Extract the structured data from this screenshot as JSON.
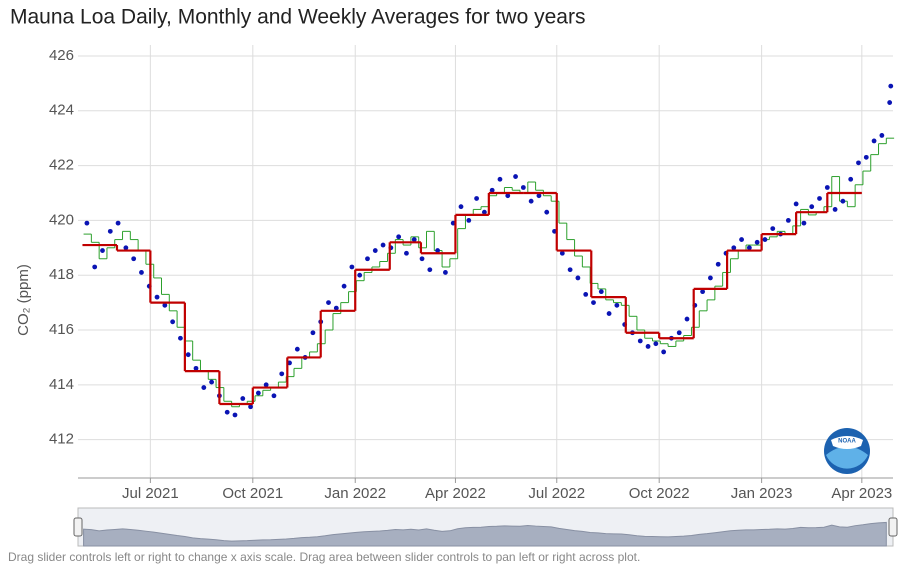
{
  "chart_data": {
    "type": "co2-steps",
    "title": "Mauna Loa Daily, Monthly and Weekly Averages for two years",
    "y_label": "CO₂ (ppm)",
    "footer": "Drag slider controls left or right to change x axis scale. Drag area between slider controls to pan left or right across plot.",
    "logo_text": "NOAA",
    "xlim": [
      "2021-04-27",
      "2023-04-29"
    ],
    "xticks": [
      {
        "value": "2021-07-01",
        "label": "Jul 2021"
      },
      {
        "value": "2021-10-01",
        "label": "Oct 2021"
      },
      {
        "value": "2022-01-01",
        "label": "Jan 2022"
      },
      {
        "value": "2022-04-01",
        "label": "Apr 2022"
      },
      {
        "value": "2022-07-01",
        "label": "Jul 2022"
      },
      {
        "value": "2022-10-01",
        "label": "Oct 2022"
      },
      {
        "value": "2023-01-01",
        "label": "Jan 2023"
      },
      {
        "value": "2023-04-01",
        "label": "Apr 2023"
      }
    ],
    "ylim": [
      410.6,
      426.4
    ],
    "yticks": [
      412,
      414,
      416,
      418,
      420,
      422,
      424,
      426
    ],
    "grid": true,
    "daily": {
      "color": "#0a14b4",
      "x": [
        "2021-05-05",
        "2021-05-12",
        "2021-05-19",
        "2021-05-26",
        "2021-06-02",
        "2021-06-09",
        "2021-06-16",
        "2021-06-23",
        "2021-06-30",
        "2021-07-07",
        "2021-07-14",
        "2021-07-21",
        "2021-07-28",
        "2021-08-04",
        "2021-08-11",
        "2021-08-18",
        "2021-08-25",
        "2021-09-01",
        "2021-09-08",
        "2021-09-15",
        "2021-09-22",
        "2021-09-29",
        "2021-10-06",
        "2021-10-13",
        "2021-10-20",
        "2021-10-27",
        "2021-11-03",
        "2021-11-10",
        "2021-11-17",
        "2021-11-24",
        "2021-12-01",
        "2021-12-08",
        "2021-12-15",
        "2021-12-22",
        "2021-12-29",
        "2022-01-05",
        "2022-01-12",
        "2022-01-19",
        "2022-01-26",
        "2022-02-02",
        "2022-02-09",
        "2022-02-16",
        "2022-02-23",
        "2022-03-02",
        "2022-03-09",
        "2022-03-16",
        "2022-03-23",
        "2022-03-30",
        "2022-04-06",
        "2022-04-13",
        "2022-04-20",
        "2022-04-27",
        "2022-05-04",
        "2022-05-11",
        "2022-05-18",
        "2022-05-25",
        "2022-06-01",
        "2022-06-08",
        "2022-06-15",
        "2022-06-22",
        "2022-06-29",
        "2022-07-06",
        "2022-07-13",
        "2022-07-20",
        "2022-07-27",
        "2022-08-03",
        "2022-08-10",
        "2022-08-17",
        "2022-08-24",
        "2022-08-31",
        "2022-09-07",
        "2022-09-14",
        "2022-09-21",
        "2022-09-28",
        "2022-10-05",
        "2022-10-12",
        "2022-10-19",
        "2022-10-26",
        "2022-11-02",
        "2022-11-09",
        "2022-11-16",
        "2022-11-23",
        "2022-11-30",
        "2022-12-07",
        "2022-12-14",
        "2022-12-21",
        "2022-12-28",
        "2023-01-04",
        "2023-01-11",
        "2023-01-18",
        "2023-01-25",
        "2023-02-01",
        "2023-02-08",
        "2023-02-15",
        "2023-02-22",
        "2023-03-01",
        "2023-03-08",
        "2023-03-15",
        "2023-03-22",
        "2023-03-29",
        "2023-04-05",
        "2023-04-12",
        "2023-04-19",
        "2023-04-26",
        "2023-04-27"
      ],
      "values": [
        419.9,
        418.3,
        418.9,
        419.6,
        419.9,
        419.0,
        418.6,
        418.1,
        417.6,
        417.2,
        416.9,
        416.3,
        415.7,
        415.1,
        414.6,
        413.9,
        414.1,
        413.6,
        413.0,
        412.9,
        413.5,
        413.2,
        413.7,
        414.0,
        413.6,
        414.4,
        414.8,
        415.3,
        415.0,
        415.9,
        416.3,
        417.0,
        416.8,
        417.6,
        418.3,
        418.0,
        418.6,
        418.9,
        419.1,
        419.0,
        419.4,
        418.8,
        419.3,
        418.6,
        418.2,
        418.9,
        418.1,
        419.9,
        420.5,
        420.0,
        420.8,
        420.3,
        421.1,
        421.5,
        420.9,
        421.6,
        421.2,
        420.7,
        420.9,
        420.3,
        419.6,
        418.8,
        418.2,
        417.9,
        417.3,
        417.0,
        417.4,
        416.6,
        416.9,
        416.2,
        415.9,
        415.6,
        415.4,
        415.5,
        415.2,
        415.7,
        415.9,
        416.4,
        416.9,
        417.4,
        417.9,
        418.4,
        418.8,
        419.0,
        419.3,
        419.0,
        419.2,
        419.3,
        419.7,
        419.5,
        420.0,
        420.6,
        419.9,
        420.5,
        420.8,
        421.2,
        420.4,
        420.7,
        421.5,
        422.1,
        422.3,
        422.9,
        423.1,
        424.3,
        424.9
      ]
    },
    "weekly": {
      "color": "#2ca02c",
      "x": [
        "2021-05-02",
        "2021-05-09",
        "2021-05-16",
        "2021-05-23",
        "2021-05-30",
        "2021-06-06",
        "2021-06-13",
        "2021-06-20",
        "2021-06-27",
        "2021-07-04",
        "2021-07-11",
        "2021-07-18",
        "2021-07-25",
        "2021-08-01",
        "2021-08-08",
        "2021-08-15",
        "2021-08-22",
        "2021-08-29",
        "2021-09-05",
        "2021-09-12",
        "2021-09-19",
        "2021-09-26",
        "2021-10-03",
        "2021-10-10",
        "2021-10-17",
        "2021-10-24",
        "2021-10-31",
        "2021-11-07",
        "2021-11-14",
        "2021-11-21",
        "2021-11-28",
        "2021-12-05",
        "2021-12-12",
        "2021-12-19",
        "2021-12-26",
        "2022-01-02",
        "2022-01-09",
        "2022-01-16",
        "2022-01-23",
        "2022-01-30",
        "2022-02-06",
        "2022-02-13",
        "2022-02-20",
        "2022-02-27",
        "2022-03-06",
        "2022-03-13",
        "2022-03-20",
        "2022-03-27",
        "2022-04-03",
        "2022-04-10",
        "2022-04-17",
        "2022-04-24",
        "2022-05-01",
        "2022-05-08",
        "2022-05-15",
        "2022-05-22",
        "2022-05-29",
        "2022-06-05",
        "2022-06-12",
        "2022-06-19",
        "2022-06-26",
        "2022-07-03",
        "2022-07-10",
        "2022-07-17",
        "2022-07-24",
        "2022-07-31",
        "2022-08-07",
        "2022-08-14",
        "2022-08-21",
        "2022-08-28",
        "2022-09-04",
        "2022-09-11",
        "2022-09-18",
        "2022-09-25",
        "2022-10-02",
        "2022-10-09",
        "2022-10-16",
        "2022-10-23",
        "2022-10-30",
        "2022-11-06",
        "2022-11-13",
        "2022-11-20",
        "2022-11-27",
        "2022-12-04",
        "2022-12-11",
        "2022-12-18",
        "2022-12-25",
        "2023-01-01",
        "2023-01-08",
        "2023-01-15",
        "2023-01-22",
        "2023-01-29",
        "2023-02-05",
        "2023-02-12",
        "2023-02-19",
        "2023-02-26",
        "2023-03-05",
        "2023-03-12",
        "2023-03-19",
        "2023-03-26",
        "2023-04-02",
        "2023-04-09",
        "2023-04-16",
        "2023-04-23"
      ],
      "values": [
        419.5,
        419.2,
        418.6,
        419.0,
        419.3,
        419.6,
        419.3,
        418.9,
        418.4,
        417.9,
        417.3,
        416.7,
        416.1,
        415.6,
        414.9,
        414.5,
        414.2,
        413.9,
        413.4,
        413.2,
        413.3,
        413.4,
        413.6,
        413.8,
        413.9,
        414.1,
        414.3,
        414.6,
        415.0,
        415.2,
        415.5,
        416.0,
        416.6,
        417.0,
        417.4,
        417.8,
        418.1,
        418.3,
        418.5,
        418.8,
        419.3,
        419.1,
        419.4,
        419.0,
        419.6,
        418.9,
        418.3,
        418.6,
        419.7,
        420.2,
        420.4,
        420.5,
        420.9,
        421.0,
        421.2,
        421.1,
        421.0,
        421.4,
        421.1,
        420.9,
        420.7,
        419.9,
        419.3,
        418.7,
        418.3,
        417.7,
        417.5,
        417.1,
        417.0,
        416.9,
        416.5,
        416.0,
        415.7,
        415.6,
        415.5,
        415.4,
        415.6,
        415.8,
        416.1,
        416.7,
        417.1,
        417.6,
        418.1,
        418.6,
        418.9,
        419.1,
        419.1,
        419.3,
        419.4,
        419.6,
        419.5,
        419.8,
        420.4,
        420.2,
        420.3,
        420.5,
        421.6,
        420.7,
        420.5,
        421.3,
        421.8,
        422.4,
        422.8,
        423.0
      ]
    },
    "monthly": {
      "color": "#c00000",
      "x": [
        "2021-05",
        "2021-06",
        "2021-07",
        "2021-08",
        "2021-09",
        "2021-10",
        "2021-11",
        "2021-12",
        "2022-01",
        "2022-02",
        "2022-03",
        "2022-04",
        "2022-05",
        "2022-06",
        "2022-07",
        "2022-08",
        "2022-09",
        "2022-10",
        "2022-11",
        "2022-12",
        "2023-01",
        "2023-02",
        "2023-03"
      ],
      "values": [
        419.1,
        418.9,
        417.0,
        414.5,
        413.3,
        413.9,
        415.0,
        416.7,
        418.2,
        419.2,
        418.8,
        420.2,
        421.0,
        421.0,
        418.9,
        417.2,
        415.9,
        415.7,
        417.5,
        418.9,
        419.5,
        420.3,
        421.0
      ]
    }
  }
}
